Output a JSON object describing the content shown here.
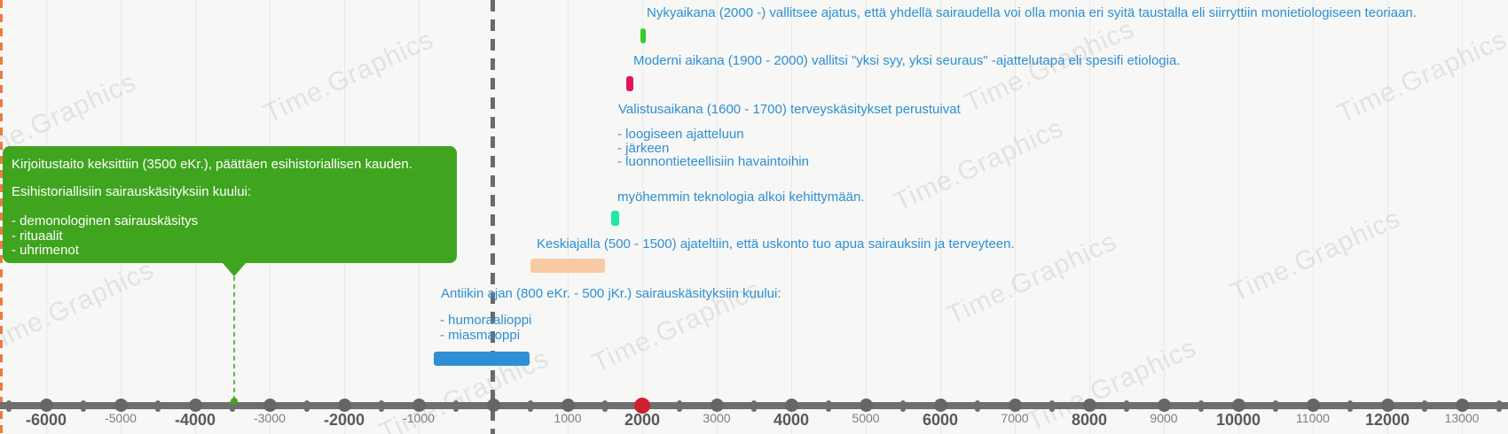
{
  "timeline": {
    "watermark": "Time.Graphics",
    "axis": {
      "ticks": [
        {
          "year": -6000,
          "label": "-6000",
          "bold": true
        },
        {
          "year": -5000,
          "label": "-5000",
          "bold": false
        },
        {
          "year": -4000,
          "label": "-4000",
          "bold": true
        },
        {
          "year": -3000,
          "label": "-3000",
          "bold": false
        },
        {
          "year": -2000,
          "label": "-2000",
          "bold": true
        },
        {
          "year": -1000,
          "label": "-1000",
          "bold": false
        },
        {
          "year": 1000,
          "label": "1000",
          "bold": false
        },
        {
          "year": 2000,
          "label": "2000",
          "bold": true
        },
        {
          "year": 3000,
          "label": "3000",
          "bold": false
        },
        {
          "year": 4000,
          "label": "4000",
          "bold": true
        },
        {
          "year": 5000,
          "label": "5000",
          "bold": false
        },
        {
          "year": 6000,
          "label": "6000",
          "bold": true
        },
        {
          "year": 7000,
          "label": "7000",
          "bold": false
        },
        {
          "year": 8000,
          "label": "8000",
          "bold": true
        },
        {
          "year": 9000,
          "label": "9000",
          "bold": false
        },
        {
          "year": 10000,
          "label": "10000",
          "bold": true
        },
        {
          "year": 11000,
          "label": "11000",
          "bold": false
        },
        {
          "year": 12000,
          "label": "12000",
          "bold": true
        },
        {
          "year": 13000,
          "label": "13000",
          "bold": false
        }
      ],
      "highlight_year": 2000,
      "highlight_color": "#ce2130",
      "axis_color": "#6e6e6e"
    },
    "chart_data": {
      "type": "table",
      "title": "",
      "x_axis": {
        "unit": "year",
        "range": [
          -6500,
          13500
        ],
        "tick_step": 1000
      },
      "events": [
        {
          "name": "Esihistoriallinen kausi",
          "point_year": -3500,
          "style": "callout",
          "color": "#3fa41e"
        },
        {
          "name": "Antiikin aika",
          "start_year": -800,
          "end_year": 500,
          "color": "#2f8fd6"
        },
        {
          "name": "Keskiaika",
          "start_year": 500,
          "end_year": 1500,
          "color": "#f9c9a2"
        },
        {
          "name": "Valistusaika",
          "start_year": 1600,
          "end_year": 1700,
          "color": "#1de9a8"
        },
        {
          "name": "Moderni aika",
          "start_year": 1900,
          "end_year": 2000,
          "color": "#e4135f"
        },
        {
          "name": "Nykyaika",
          "start_year": 2000,
          "end_year": null,
          "color": "#35cc2e"
        }
      ]
    },
    "events": [
      {
        "id": "esihistoria",
        "color": "#3fa41e",
        "line1": "Kirjoitustaito keksittiin (3500 eKr.), päättäen esihistoriallisen kauden.",
        "line2": "Esihistoriallisiin sairauskäsityksiin kuului:",
        "bullets": [
          "- demonologinen sairauskäsitys",
          "- rituaalit",
          "- uhrimenot"
        ]
      },
      {
        "id": "antiikki",
        "color": "#2f8fd6",
        "title": "Antiikin ajan (800 eKr. - 500 jKr.) sairauskäsityksiin kuului:",
        "bullets": [
          "- humoraalioppi",
          "- miasmaoppi"
        ]
      },
      {
        "id": "keskiaika",
        "color": "#f9c9a2",
        "title": "Keskiajalla (500 - 1500) ajateltiin, että uskonto tuo apua sairauksiin ja terveyteen."
      },
      {
        "id": "valistus",
        "color": "#1de9a8",
        "title": "Valistusaikana (1600 - 1700) terveyskäsitykset perustuivat",
        "bullets": [
          "- loogiseen ajatteluun",
          "- järkeen",
          "- luonnontieteellisiin havaintoihin"
        ],
        "footer": "myöhemmin teknologia alkoi kehittymään."
      },
      {
        "id": "moderni",
        "color": "#e4135f",
        "title": "Moderni aikana (1900 - 2000) vallitsi \"yksi syy, yksi seuraus\" -ajattelutapa eli spesifi etiologia."
      },
      {
        "id": "nykyaika",
        "color": "#35cc2e",
        "title": "Nykyaikana (2000 -) vallitsee ajatus, että yhdellä sairaudella voi olla monia eri syitä taustalla eli siirryttiin monietiologiseen teoriaan."
      }
    ]
  }
}
